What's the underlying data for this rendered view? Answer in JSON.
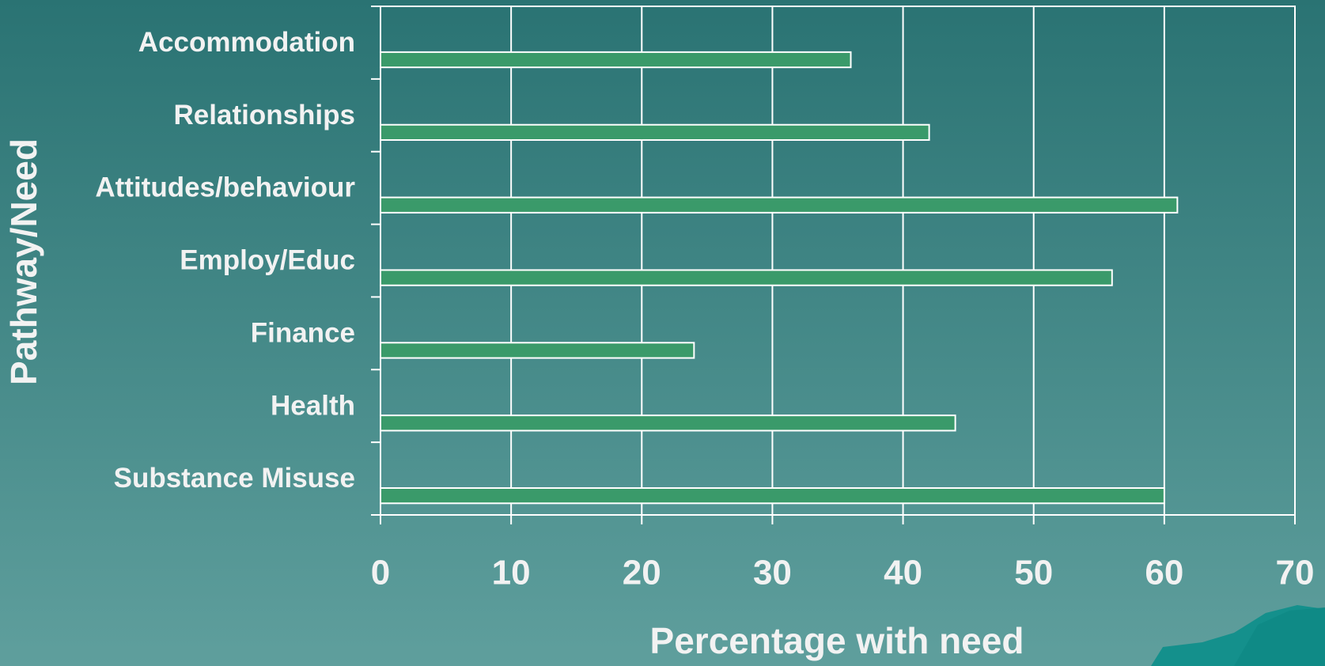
{
  "chart_data": {
    "type": "barh",
    "categories": [
      "Accommodation",
      "Relationships",
      "Attitudes/behaviour",
      "Employ/Educ",
      "Finance",
      "Health",
      "Substance Misuse"
    ],
    "values": [
      36,
      42,
      61,
      56,
      24,
      44,
      60
    ],
    "color": "#3a9a6a",
    "xlim": [
      0,
      70
    ],
    "xticks": [
      0,
      10,
      20,
      30,
      40,
      50,
      60,
      70
    ],
    "x_label": "Percentage  with need",
    "y_label": "Pathway/Need",
    "grid": true
  }
}
